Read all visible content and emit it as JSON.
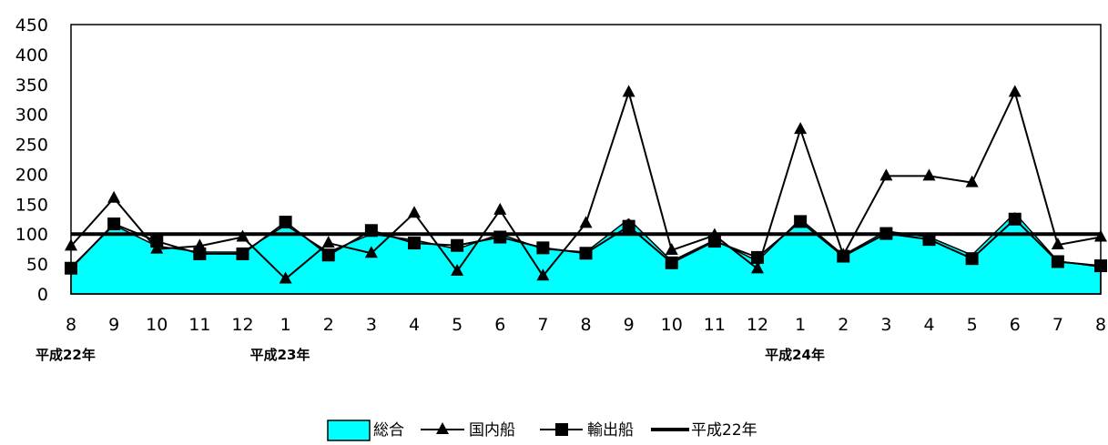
{
  "chart_data": {
    "type": "line",
    "y_ticks": [
      "0",
      "50",
      "100",
      "150",
      "200",
      "250",
      "300",
      "350",
      "400",
      "450"
    ],
    "ylim": [
      0,
      450
    ],
    "x": [
      "8",
      "9",
      "10",
      "11",
      "12",
      "1",
      "2",
      "3",
      "4",
      "5",
      "6",
      "7",
      "8",
      "9",
      "10",
      "11",
      "12",
      "1",
      "2",
      "3",
      "4",
      "5",
      "6",
      "7",
      "8"
    ],
    "year_labels": [
      {
        "label": "平成22年",
        "index": 0
      },
      {
        "label": "平成23年",
        "index": 5
      },
      {
        "label": "平成24年",
        "index": 17
      }
    ],
    "series": [
      {
        "name": "総合",
        "kind": "area",
        "color": "#00ffff",
        "values": [
          45,
          115,
          80,
          70,
          70,
          115,
          70,
          100,
          90,
          75,
          100,
          75,
          70,
          125,
          55,
          90,
          55,
          125,
          65,
          105,
          95,
          65,
          135,
          55,
          45
        ]
      },
      {
        "name": "国内船",
        "kind": "line-triangle",
        "color": "#000000",
        "values": [
          80,
          160,
          75,
          80,
          95,
          25,
          85,
          68,
          135,
          38,
          140,
          30,
          118,
          337,
          73,
          98,
          42,
          275,
          65,
          197,
          197,
          186,
          337,
          82,
          95
        ]
      },
      {
        "name": "輸出船",
        "kind": "line-square",
        "color": "#000000",
        "values": [
          43,
          117,
          88,
          67,
          67,
          120,
          65,
          106,
          85,
          81,
          95,
          77,
          68,
          113,
          52,
          88,
          61,
          121,
          63,
          101,
          91,
          59,
          125,
          54,
          47
        ]
      },
      {
        "name": "平成22年",
        "kind": "reference-line",
        "color": "#000000",
        "value": 100
      }
    ],
    "grid": false,
    "legend_position": "bottom-center"
  }
}
